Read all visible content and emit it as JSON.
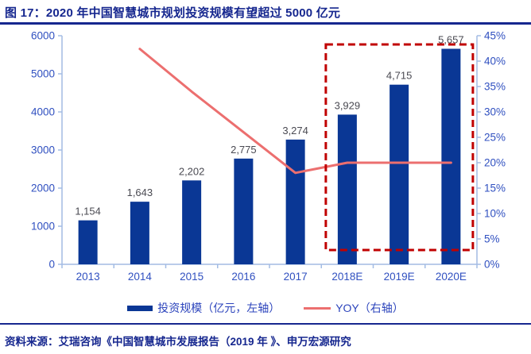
{
  "header": {
    "title": "图 17：2020 年中国智慧城市规划投资规模有望超过 5000 亿元"
  },
  "source": {
    "text": "资料来源：艾瑞咨询《中国智慧城市发展报告（2019 年 》、申万宏源研究"
  },
  "colors": {
    "navy_title": "#16278f",
    "bar_fill": "#0a3795",
    "line_red": "#ec6f6f",
    "highlight_red": "#c00000",
    "axis_line": "#a3bce4",
    "tick_text": "#3050c0",
    "data_label_text": "#4a4a52"
  },
  "chart_data": {
    "type": "bar",
    "subtype": "bar+line combo, dual axis",
    "categories": [
      "2013",
      "2014",
      "2015",
      "2016",
      "2017",
      "2018E",
      "2019E",
      "2020E"
    ],
    "series": [
      {
        "name": "投资规模（亿元，左轴）",
        "type": "bar",
        "axis": "left",
        "values": [
          1154,
          1643,
          2202,
          2775,
          3274,
          3929,
          4715,
          5657
        ],
        "labels": [
          "1,154",
          "1,643",
          "2,202",
          "2,775",
          "3,274",
          "3,929",
          "4,715",
          "5,657"
        ],
        "color": "#0a3795"
      },
      {
        "name": "YOY（右轴）",
        "type": "line",
        "axis": "right",
        "values": [
          null,
          42.4,
          34.0,
          26.0,
          18.0,
          20.0,
          20.0,
          20.0
        ],
        "color": "#ec6f6f"
      }
    ],
    "left_axis": {
      "min": 0,
      "max": 6000,
      "step": 1000,
      "tick_labels": [
        "0",
        "1000",
        "2000",
        "3000",
        "4000",
        "5000",
        "6000"
      ]
    },
    "right_axis": {
      "min": 0,
      "max": 45,
      "step": 5,
      "tick_labels": [
        "0%",
        "5%",
        "10%",
        "15%",
        "20%",
        "25%",
        "30%",
        "35%",
        "40%",
        "45%"
      ]
    },
    "highlight_box": {
      "from": "2018E",
      "to": "2020E",
      "color": "#c00000",
      "style": "dashed"
    },
    "grid": false,
    "legend_position": "bottom"
  }
}
